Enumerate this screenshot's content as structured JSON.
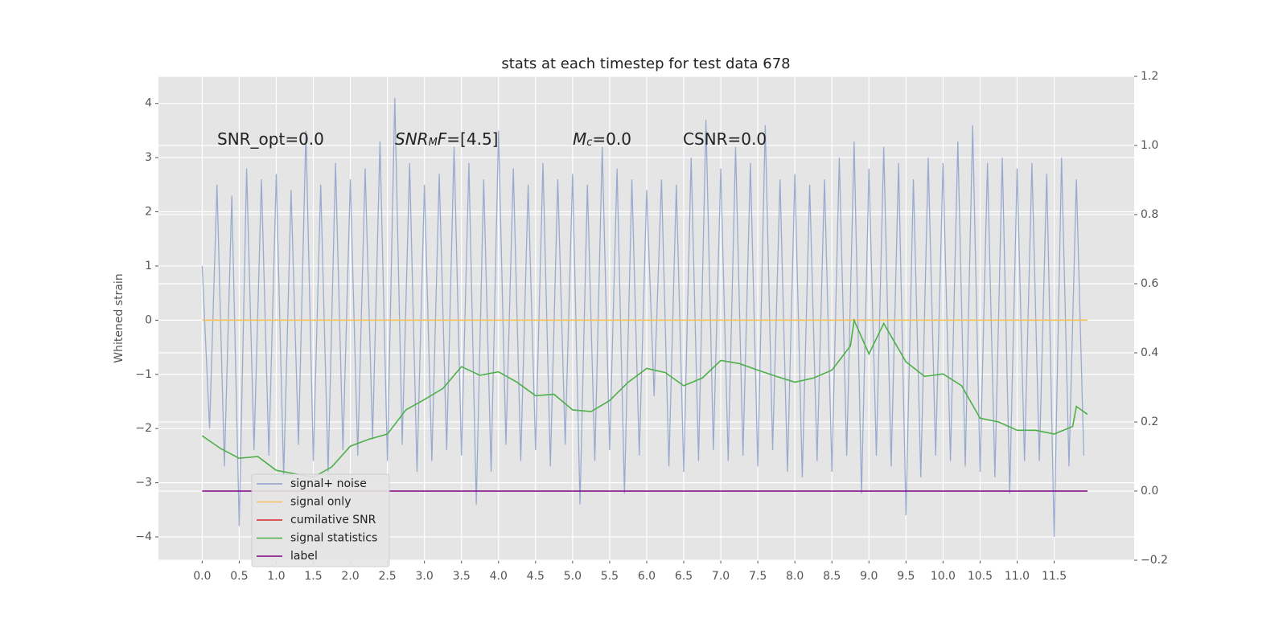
{
  "chart_data": {
    "type": "line",
    "title": "stats at each timestep for test data 678",
    "ylabel": "Whitened strain",
    "xlim": [
      -0.59,
      12.58
    ],
    "ylim": [
      -4.43,
      4.5
    ],
    "y2lim": [
      -0.2,
      1.2
    ],
    "grid": true,
    "legend": "lower left",
    "xticks": [
      {
        "value": 0,
        "label": "0.0"
      },
      {
        "value": 0.5,
        "label": "0.5"
      },
      {
        "value": 1,
        "label": "1.0"
      },
      {
        "value": 1.5,
        "label": "1.5"
      },
      {
        "value": 2,
        "label": "2.0"
      },
      {
        "value": 2.5,
        "label": "2.5"
      },
      {
        "value": 3,
        "label": "3.0"
      },
      {
        "value": 3.5,
        "label": "3.5"
      },
      {
        "value": 4,
        "label": "4.0"
      },
      {
        "value": 4.5,
        "label": "4.5"
      },
      {
        "value": 5,
        "label": "5.0"
      },
      {
        "value": 5.5,
        "label": "5.5"
      },
      {
        "value": 6,
        "label": "6.0"
      },
      {
        "value": 6.5,
        "label": "6.5"
      },
      {
        "value": 7,
        "label": "7.0"
      },
      {
        "value": 7.5,
        "label": "7.5"
      },
      {
        "value": 8,
        "label": "8.0"
      },
      {
        "value": 8.5,
        "label": "8.5"
      },
      {
        "value": 9,
        "label": "9.0"
      },
      {
        "value": 9.5,
        "label": "9.5"
      },
      {
        "value": 10,
        "label": "10.0"
      },
      {
        "value": 10.5,
        "label": "10.5"
      },
      {
        "value": 11,
        "label": "11.0"
      },
      {
        "value": 11.5,
        "label": "11.5"
      }
    ],
    "yticks": [
      {
        "value": -4,
        "label": "−4"
      },
      {
        "value": -3,
        "label": "−3"
      },
      {
        "value": -2,
        "label": "−2"
      },
      {
        "value": -1,
        "label": "−1"
      },
      0,
      1,
      2,
      3,
      4
    ],
    "y2ticks": [
      {
        "value": -0.2,
        "label": "−0.2"
      },
      {
        "value": 0,
        "label": "0.0"
      },
      0.2,
      0.4,
      0.6,
      0.8,
      {
        "value": 1,
        "label": "1.0"
      },
      1.2
    ],
    "annotations": [
      [
        {
          "text": "SNR_opt=0.0"
        }
      ],
      [
        {
          "text": "SNR",
          "style": "italic"
        },
        {
          "text": "M",
          "style": "sub"
        },
        {
          "text": "F",
          "style": "italic"
        },
        {
          "text": "=[4.5]"
        }
      ],
      [
        {
          "text": "M",
          "style": "italic"
        },
        {
          "text": "c",
          "style": "sub"
        },
        {
          "text": "=0.0"
        }
      ],
      [
        {
          "text": "CSNR=0.0"
        }
      ]
    ],
    "series": [
      {
        "name": "signal+ noise",
        "color": "#8da0cb",
        "axis": "y",
        "x": [
          0,
          0.1,
          0.2,
          0.3,
          0.4,
          0.5,
          0.6,
          0.7,
          0.8,
          0.9,
          1,
          1.1,
          1.2,
          1.3,
          1.4,
          1.5,
          1.6,
          1.7,
          1.8,
          1.9,
          2,
          2.1,
          2.2,
          2.3,
          2.4,
          2.5,
          2.6,
          2.7,
          2.8,
          2.9,
          3,
          3.1,
          3.2,
          3.3,
          3.4,
          3.5,
          3.6,
          3.7,
          3.8,
          3.9,
          4,
          4.1,
          4.2,
          4.3,
          4.4,
          4.5,
          4.6,
          4.7,
          4.8,
          4.9,
          5,
          5.1,
          5.2,
          5.3,
          5.4,
          5.5,
          5.6,
          5.7,
          5.8,
          5.9,
          6,
          6.1,
          6.2,
          6.3,
          6.4,
          6.5,
          6.6,
          6.7,
          6.8,
          6.9,
          7,
          7.1,
          7.2,
          7.3,
          7.4,
          7.5,
          7.6,
          7.7,
          7.8,
          7.9,
          8,
          8.1,
          8.2,
          8.3,
          8.4,
          8.5,
          8.6,
          8.7,
          8.8,
          8.9,
          9,
          9.1,
          9.2,
          9.3,
          9.4,
          9.5,
          9.6,
          9.7,
          9.8,
          9.9,
          10,
          10.1,
          10.2,
          10.3,
          10.4,
          10.5,
          10.6,
          10.7,
          10.8,
          10.9,
          11,
          11.1,
          11.2,
          11.3,
          11.4,
          11.5,
          11.6,
          11.7,
          11.8,
          11.9
        ],
        "values": [
          1.0,
          -2.0,
          2.5,
          -2.7,
          2.3,
          -3.8,
          2.8,
          -2.4,
          2.6,
          -2.5,
          2.7,
          -2.9,
          2.4,
          -2.3,
          3.5,
          -2.6,
          2.5,
          -2.8,
          2.9,
          -2.4,
          2.6,
          -2.5,
          2.8,
          -2.2,
          3.3,
          -2.6,
          4.1,
          -2.3,
          2.9,
          -2.8,
          2.5,
          -2.6,
          2.7,
          -2.4,
          3.2,
          -2.5,
          2.9,
          -3.4,
          2.6,
          -2.8,
          3.5,
          -2.3,
          2.8,
          -2.6,
          2.5,
          -2.4,
          2.9,
          -2.7,
          2.6,
          -2.3,
          2.7,
          -3.4,
          2.5,
          -2.6,
          3.2,
          -2.4,
          2.8,
          -3.2,
          2.6,
          -2.5,
          2.4,
          -1.4,
          2.6,
          -2.7,
          2.5,
          -2.8,
          3.0,
          -2.6,
          3.7,
          -2.4,
          2.8,
          -2.6,
          3.2,
          -2.5,
          2.9,
          -2.7,
          3.6,
          -2.4,
          2.6,
          -2.8,
          2.7,
          -2.9,
          2.5,
          -2.6,
          2.6,
          -2.8,
          3.0,
          -2.5,
          3.3,
          -3.2,
          2.8,
          -2.5,
          3.2,
          -2.7,
          2.9,
          -3.6,
          2.6,
          -2.9,
          3.0,
          -2.5,
          2.9,
          -2.6,
          3.3,
          -2.7,
          3.6,
          -2.8,
          2.9,
          -2.9,
          3.0,
          -3.2,
          2.8,
          -2.6,
          2.9,
          -2.6,
          2.7,
          -4.0,
          3.0,
          -2.7,
          2.6,
          -2.5
        ]
      },
      {
        "name": "signal only",
        "color": "#f2c45a",
        "axis": "y",
        "x": [
          0,
          11.95
        ],
        "values": [
          0,
          0
        ]
      },
      {
        "name": "cumilative SNR",
        "color": "#d62728",
        "axis": "y2",
        "x": [],
        "values": []
      },
      {
        "name": "signal statistics",
        "color": "#4daf4a",
        "axis": "y2",
        "x": [
          0,
          0.25,
          0.5,
          0.75,
          1,
          1.25,
          1.5,
          1.75,
          2,
          2.25,
          2.5,
          2.75,
          3,
          3.25,
          3.5,
          3.75,
          4,
          4.25,
          4.5,
          4.75,
          5,
          5.25,
          5.5,
          5.75,
          6,
          6.25,
          6.5,
          6.75,
          7,
          7.25,
          7.5,
          7.75,
          8,
          8.25,
          8.5,
          8.75,
          8.8,
          9,
          9.2,
          9.5,
          9.75,
          10,
          10.25,
          10.5,
          10.75,
          11,
          11.25,
          11.5,
          11.75,
          11.8,
          11.95
        ],
        "values": [
          0.16,
          0.123,
          0.095,
          0.1,
          0.06,
          0.05,
          0.04,
          0.07,
          0.13,
          0.15,
          0.165,
          0.235,
          0.265,
          0.297,
          0.36,
          0.335,
          0.345,
          0.315,
          0.276,
          0.28,
          0.235,
          0.23,
          0.262,
          0.315,
          0.355,
          0.343,
          0.305,
          0.327,
          0.378,
          0.369,
          0.35,
          0.332,
          0.315,
          0.327,
          0.35,
          0.42,
          0.494,
          0.397,
          0.485,
          0.374,
          0.332,
          0.339,
          0.305,
          0.211,
          0.2,
          0.176,
          0.176,
          0.165,
          0.187,
          0.245,
          0.222
        ]
      },
      {
        "name": "label",
        "color": "#800080",
        "axis": "y2",
        "x": [
          0,
          11.95
        ],
        "values": [
          0,
          0
        ]
      }
    ]
  }
}
